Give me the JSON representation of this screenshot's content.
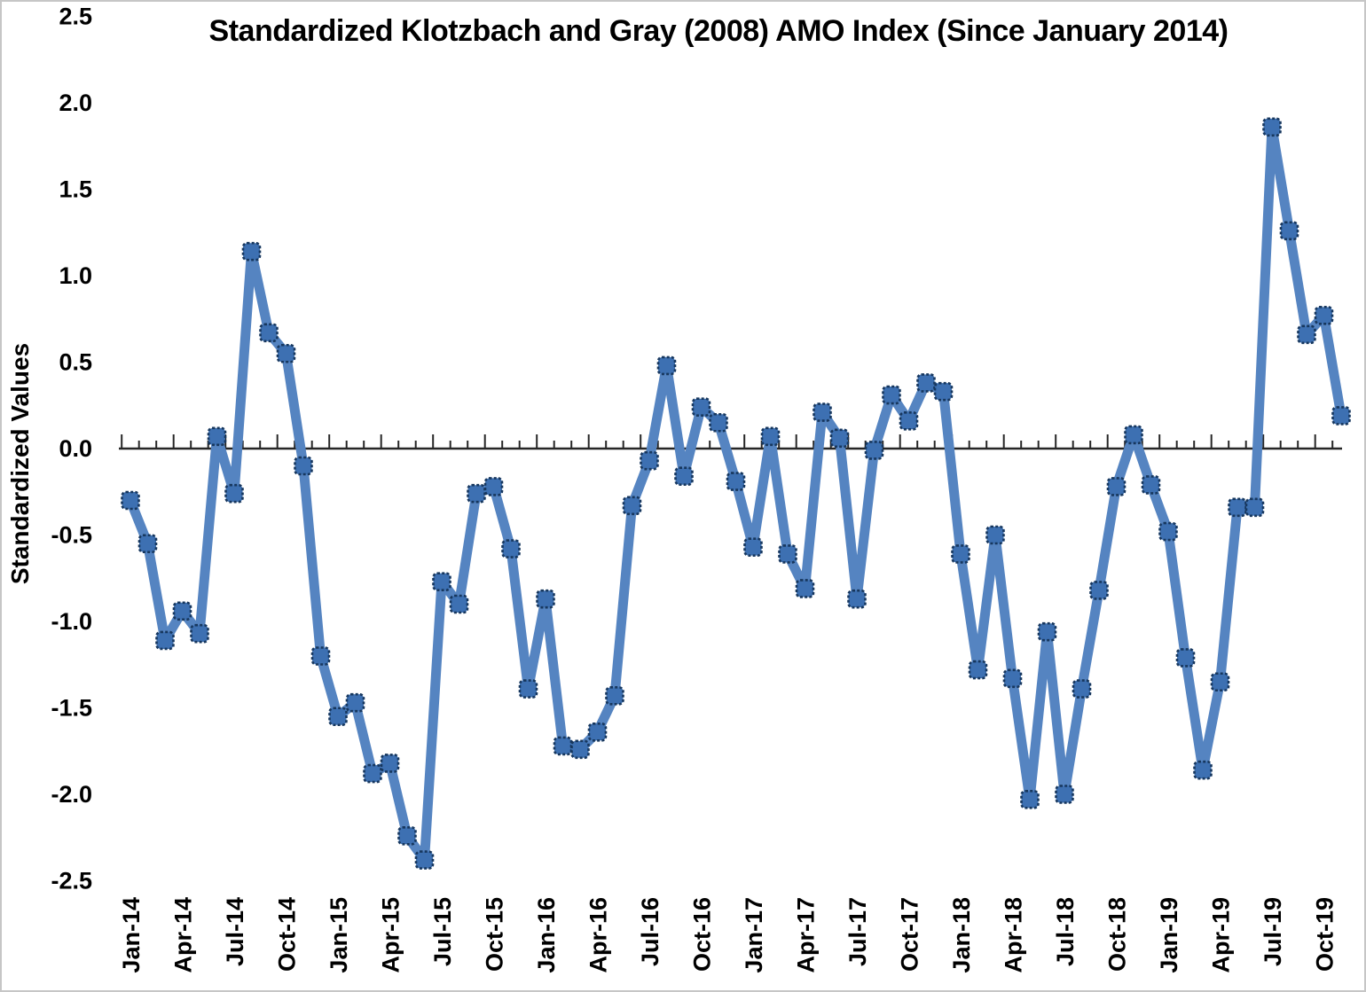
{
  "page": {
    "background": "#ffffff",
    "border_color": "#c6c6c6"
  },
  "chart_data": {
    "type": "line",
    "title": "Standardized Klotzbach and Gray (2008)  AMO Index (Since January 2014)",
    "xlabel": "",
    "ylabel": "Standardized Values",
    "series_name": "Standardized Klotzbach and Gray (2008) AMO Index",
    "x": [
      "Jan-14",
      "Feb-14",
      "Mar-14",
      "Apr-14",
      "May-14",
      "Jun-14",
      "Jul-14",
      "Aug-14",
      "Sep-14",
      "Oct-14",
      "Nov-14",
      "Dec-14",
      "Jan-15",
      "Feb-15",
      "Mar-15",
      "Apr-15",
      "May-15",
      "Jun-15",
      "Jul-15",
      "Aug-15",
      "Sep-15",
      "Oct-15",
      "Nov-15",
      "Dec-15",
      "Jan-16",
      "Feb-16",
      "Mar-16",
      "Apr-16",
      "May-16",
      "Jun-16",
      "Jul-16",
      "Aug-16",
      "Sep-16",
      "Oct-16",
      "Nov-16",
      "Dec-16",
      "Jan-17",
      "Feb-17",
      "Mar-17",
      "Apr-17",
      "May-17",
      "Jun-17",
      "Jul-17",
      "Aug-17",
      "Sep-17",
      "Oct-17",
      "Nov-17",
      "Dec-17",
      "Jan-18",
      "Feb-18",
      "Mar-18",
      "Apr-18",
      "May-18",
      "Jun-18",
      "Jul-18",
      "Aug-18",
      "Sep-18",
      "Oct-18",
      "Nov-18",
      "Dec-18",
      "Jan-19",
      "Feb-19",
      "Mar-19",
      "Apr-19",
      "May-19",
      "Jun-19",
      "Jul-19",
      "Aug-19",
      "Sep-19",
      "Oct-19",
      "Nov-19"
    ],
    "values": [
      -0.3,
      -0.55,
      -1.11,
      -0.94,
      -1.07,
      0.07,
      -0.26,
      1.14,
      0.67,
      0.55,
      -0.1,
      -1.2,
      -1.55,
      -1.47,
      -1.88,
      -1.82,
      -2.24,
      -2.38,
      -0.77,
      -0.9,
      -0.26,
      -0.22,
      -0.58,
      -1.39,
      -0.87,
      -1.72,
      -1.74,
      -1.64,
      -1.43,
      -0.33,
      -0.07,
      0.48,
      -0.16,
      0.24,
      0.15,
      -0.19,
      -0.57,
      0.07,
      -0.61,
      -0.81,
      0.21,
      0.06,
      -0.87,
      -0.01,
      0.31,
      0.16,
      0.38,
      0.33,
      -0.61,
      -1.28,
      -0.5,
      -1.33,
      -2.03,
      -1.06,
      -2.0,
      -1.39,
      -0.82,
      -0.22,
      0.08,
      -0.21,
      -0.48,
      -1.21,
      -1.86,
      -1.35,
      -0.34,
      -0.34,
      1.86,
      1.26,
      0.66,
      0.77,
      0.19
    ],
    "ylim": [
      -2.5,
      2.5
    ],
    "ytick_step": 0.5,
    "ytick_labels": [
      "2.5",
      "2.0",
      "1.5",
      "1.0",
      "0.5",
      "0.0",
      "-0.5",
      "-1.0",
      "-1.5",
      "-2.0",
      "-2.5"
    ],
    "xtick_label_every": 3,
    "grid": false,
    "legend_position": "none",
    "marker_shape": "rounded-square-dashed",
    "colors": {
      "line": "#5584c1",
      "marker_fill": "#3d70b2",
      "marker_border": "#17375e",
      "axis": "#262626",
      "text": "#000000"
    }
  }
}
